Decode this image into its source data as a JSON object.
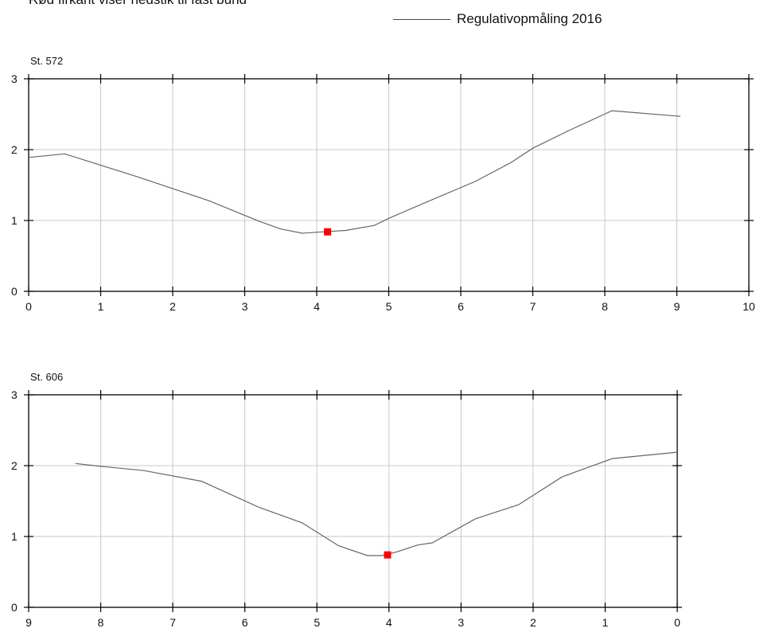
{
  "note": "Rød firkant viser nedstik til fast bund",
  "legend": {
    "label": "Regulativopmåling 2016",
    "line_color": "#666666",
    "marker_color": "#ff0000"
  },
  "chart_data": [
    {
      "type": "line",
      "title": "St. 572",
      "xlim": [
        0,
        10
      ],
      "ylim": [
        0,
        3
      ],
      "x_direction": "ascending",
      "xticks": [
        0,
        1,
        2,
        3,
        4,
        5,
        6,
        7,
        8,
        9,
        10
      ],
      "yticks": [
        0,
        1,
        2,
        3
      ],
      "grid": true,
      "series": [
        {
          "name": "Regulativopmåling 2016",
          "x": [
            0,
            0.5,
            1.5,
            2.5,
            3.2,
            3.5,
            3.8,
            4.1,
            4.4,
            4.8,
            5.0,
            5.5,
            6.2,
            6.7,
            7.0,
            7.5,
            8.1,
            9.05
          ],
          "y": [
            1.89,
            1.94,
            1.62,
            1.28,
            0.99,
            0.88,
            0.82,
            0.84,
            0.86,
            0.93,
            1.03,
            1.25,
            1.55,
            1.82,
            2.02,
            2.27,
            2.55,
            2.47
          ]
        }
      ],
      "markers": [
        {
          "label": "nedstik til fast bund",
          "x": 4.15,
          "y": 0.84
        }
      ]
    },
    {
      "type": "line",
      "title": "St. 606",
      "xlim": [
        9,
        0
      ],
      "ylim": [
        0,
        3
      ],
      "x_direction": "descending",
      "xticks": [
        9,
        8,
        7,
        6,
        5,
        4,
        3,
        2,
        1,
        0
      ],
      "yticks": [
        0,
        1,
        2,
        3
      ],
      "grid": true,
      "series": [
        {
          "name": "Regulativopmåling 2016",
          "x": [
            8.35,
            8.0,
            7.4,
            6.6,
            5.8,
            5.2,
            4.7,
            4.3,
            4.1,
            3.9,
            3.6,
            3.4,
            2.8,
            2.2,
            1.6,
            1.2,
            0.9,
            0
          ],
          "y": [
            2.03,
            1.99,
            1.93,
            1.78,
            1.41,
            1.19,
            0.87,
            0.73,
            0.73,
            0.78,
            0.88,
            0.91,
            1.25,
            1.45,
            1.84,
            1.99,
            2.1,
            2.19
          ]
        }
      ],
      "markers": [
        {
          "label": "nedstik til fast bund",
          "x": 4.02,
          "y": 0.74
        }
      ]
    }
  ]
}
